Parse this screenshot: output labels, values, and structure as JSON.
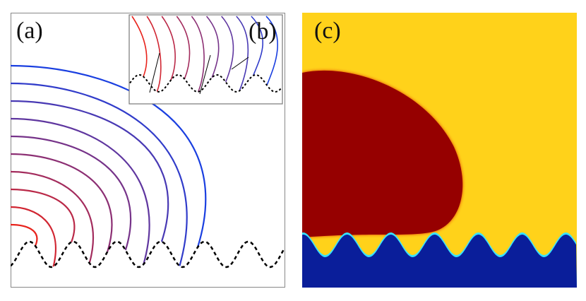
{
  "figure": {
    "panels": [
      {
        "id": "a",
        "label": "(a)"
      },
      {
        "id": "b",
        "label": "(b)"
      },
      {
        "id": "c",
        "label": "(c)"
      }
    ]
  },
  "colors": {
    "contour_start": "#e8231c",
    "contour_end": "#1a3fe0",
    "interface_dashed": "#000000",
    "phase_drop": "#960000",
    "phase_matrix": "#ffd21a",
    "phase_substrate": "#0a1e9a",
    "interface_glow": "#36e1ff"
  },
  "contours_count": 10
}
